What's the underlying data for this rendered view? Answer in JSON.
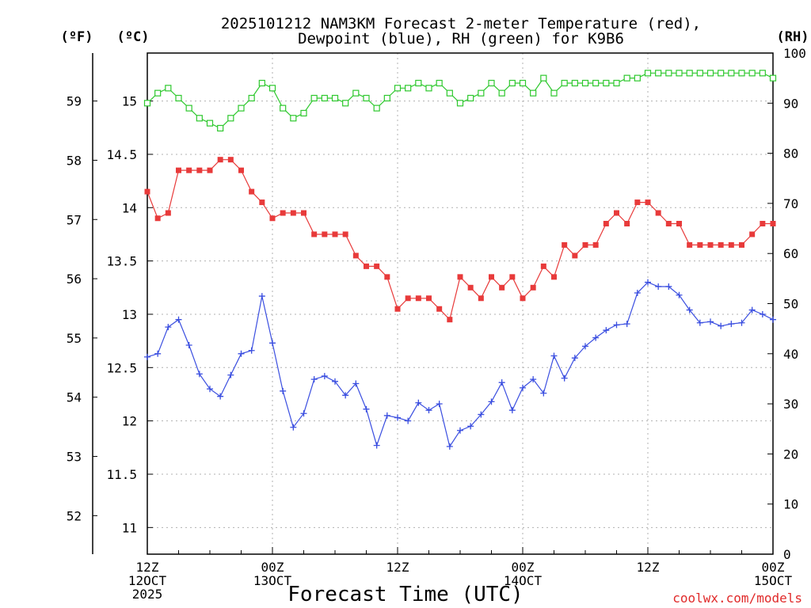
{
  "chart_data": {
    "type": "line",
    "title_lines": [
      "2025101212 NAM3KM Forecast 2-meter Temperature (red),",
      "Dewpoint (blue), RH (green) for K9B6"
    ],
    "xlabel": "Forecast Time (UTC)",
    "credit": "coolwx.com/models",
    "x_unit": "forecast hours from 2025-10-12 12Z",
    "xlim": [
      0,
      60
    ],
    "x_ticks": [
      {
        "value": 0,
        "lines": [
          "12Z",
          "12OCT",
          "2025"
        ]
      },
      {
        "value": 12,
        "lines": [
          "00Z",
          "13OCT"
        ]
      },
      {
        "value": 24,
        "lines": [
          "12Z"
        ]
      },
      {
        "value": 36,
        "lines": [
          "00Z",
          "14OCT"
        ]
      },
      {
        "value": 48,
        "lines": [
          "12Z"
        ]
      },
      {
        "value": 60,
        "lines": [
          "00Z",
          "15OCT"
        ]
      }
    ],
    "axes": {
      "celsius": {
        "unit": "(ºC)",
        "ylim": [
          10.75,
          15.45
        ],
        "ticks": [
          11,
          11.5,
          12,
          12.5,
          13,
          13.5,
          14,
          14.5,
          15
        ]
      },
      "fahrenheit": {
        "unit": "(ºF)",
        "ticks": [
          52,
          53,
          54,
          55,
          56,
          57,
          58,
          59
        ]
      },
      "rh": {
        "unit": "(RH)",
        "ylim": [
          0,
          100
        ],
        "ticks": [
          0,
          10,
          20,
          30,
          40,
          50,
          60,
          70,
          80,
          90,
          100
        ]
      }
    },
    "grid": true,
    "series": [
      {
        "name": "Temperature",
        "axis": "celsius",
        "color": "#e83a3a",
        "marker": "filled-square",
        "x": [
          0,
          1,
          2,
          3,
          4,
          5,
          6,
          7,
          8,
          9,
          10,
          11,
          12,
          13,
          14,
          15,
          16,
          17,
          18,
          19,
          20,
          21,
          22,
          23,
          24,
          25,
          26,
          27,
          28,
          29,
          30,
          31,
          32,
          33,
          34,
          35,
          36,
          37,
          38,
          39,
          40,
          41,
          42,
          43,
          44,
          45,
          46,
          47,
          48,
          49,
          50,
          51,
          52,
          53,
          54,
          55,
          56,
          57,
          58,
          59,
          60
        ],
        "values": [
          14.15,
          13.9,
          13.95,
          14.35,
          14.35,
          14.35,
          14.35,
          14.45,
          14.45,
          14.35,
          14.15,
          14.05,
          13.9,
          13.95,
          13.95,
          13.95,
          13.75,
          13.75,
          13.75,
          13.75,
          13.55,
          13.45,
          13.45,
          13.35,
          13.05,
          13.15,
          13.15,
          13.15,
          13.05,
          12.95,
          13.35,
          13.25,
          13.15,
          13.35,
          13.25,
          13.35,
          13.15,
          13.25,
          13.45,
          13.35,
          13.65,
          13.55,
          13.65,
          13.65,
          13.85,
          13.95,
          13.85,
          14.05,
          14.05,
          13.95,
          13.85,
          13.85,
          13.65,
          13.65,
          13.65,
          13.65,
          13.65,
          13.65,
          13.75,
          13.85,
          13.85
        ]
      },
      {
        "name": "Dewpoint",
        "axis": "celsius",
        "color": "#3a4ee0",
        "marker": "plus",
        "x": [
          0,
          1,
          2,
          3,
          4,
          5,
          6,
          7,
          8,
          9,
          10,
          11,
          12,
          13,
          14,
          15,
          16,
          17,
          18,
          19,
          20,
          21,
          22,
          23,
          24,
          25,
          26,
          27,
          28,
          29,
          30,
          31,
          32,
          33,
          34,
          35,
          36,
          37,
          38,
          39,
          40,
          41,
          42,
          43,
          44,
          45,
          46,
          47,
          48,
          49,
          50,
          51,
          52,
          53,
          54,
          55,
          56,
          57,
          58,
          59,
          60
        ],
        "values": [
          12.6,
          12.63,
          12.88,
          12.95,
          12.71,
          12.44,
          12.3,
          12.23,
          12.43,
          12.63,
          12.66,
          13.17,
          12.73,
          12.28,
          11.94,
          12.07,
          12.39,
          12.42,
          12.37,
          12.24,
          12.35,
          12.11,
          11.77,
          12.05,
          12.03,
          12.0,
          12.17,
          12.1,
          12.16,
          11.76,
          11.91,
          11.95,
          12.06,
          12.18,
          12.36,
          12.1,
          12.31,
          12.39,
          12.26,
          12.61,
          12.4,
          12.59,
          12.7,
          12.78,
          12.85,
          12.9,
          12.91,
          13.2,
          13.3,
          13.26,
          13.26,
          13.18,
          13.04,
          12.92,
          12.93,
          12.89,
          12.91,
          12.92,
          13.04,
          13.0,
          12.95
        ]
      },
      {
        "name": "RH",
        "axis": "rh",
        "color": "#2ec82e",
        "marker": "open-square",
        "x": [
          0,
          1,
          2,
          3,
          4,
          5,
          6,
          7,
          8,
          9,
          10,
          11,
          12,
          13,
          14,
          15,
          16,
          17,
          18,
          19,
          20,
          21,
          22,
          23,
          24,
          25,
          26,
          27,
          28,
          29,
          30,
          31,
          32,
          33,
          34,
          35,
          36,
          37,
          38,
          39,
          40,
          41,
          42,
          43,
          44,
          45,
          46,
          47,
          48,
          49,
          50,
          51,
          52,
          53,
          54,
          55,
          56,
          57,
          58,
          59,
          60
        ],
        "values": [
          90,
          92,
          93,
          91,
          89,
          87,
          86,
          85,
          87,
          89,
          91,
          94,
          93,
          89,
          87,
          88,
          91,
          91,
          91,
          90,
          92,
          91,
          89,
          91,
          93,
          93,
          94,
          93,
          94,
          92,
          90,
          91,
          92,
          94,
          92,
          94,
          94,
          92,
          95,
          92,
          94,
          94,
          94,
          94,
          94,
          94,
          95,
          95,
          96,
          96,
          96,
          96,
          96,
          96,
          96,
          96,
          96,
          96,
          96,
          96,
          95
        ]
      }
    ]
  }
}
